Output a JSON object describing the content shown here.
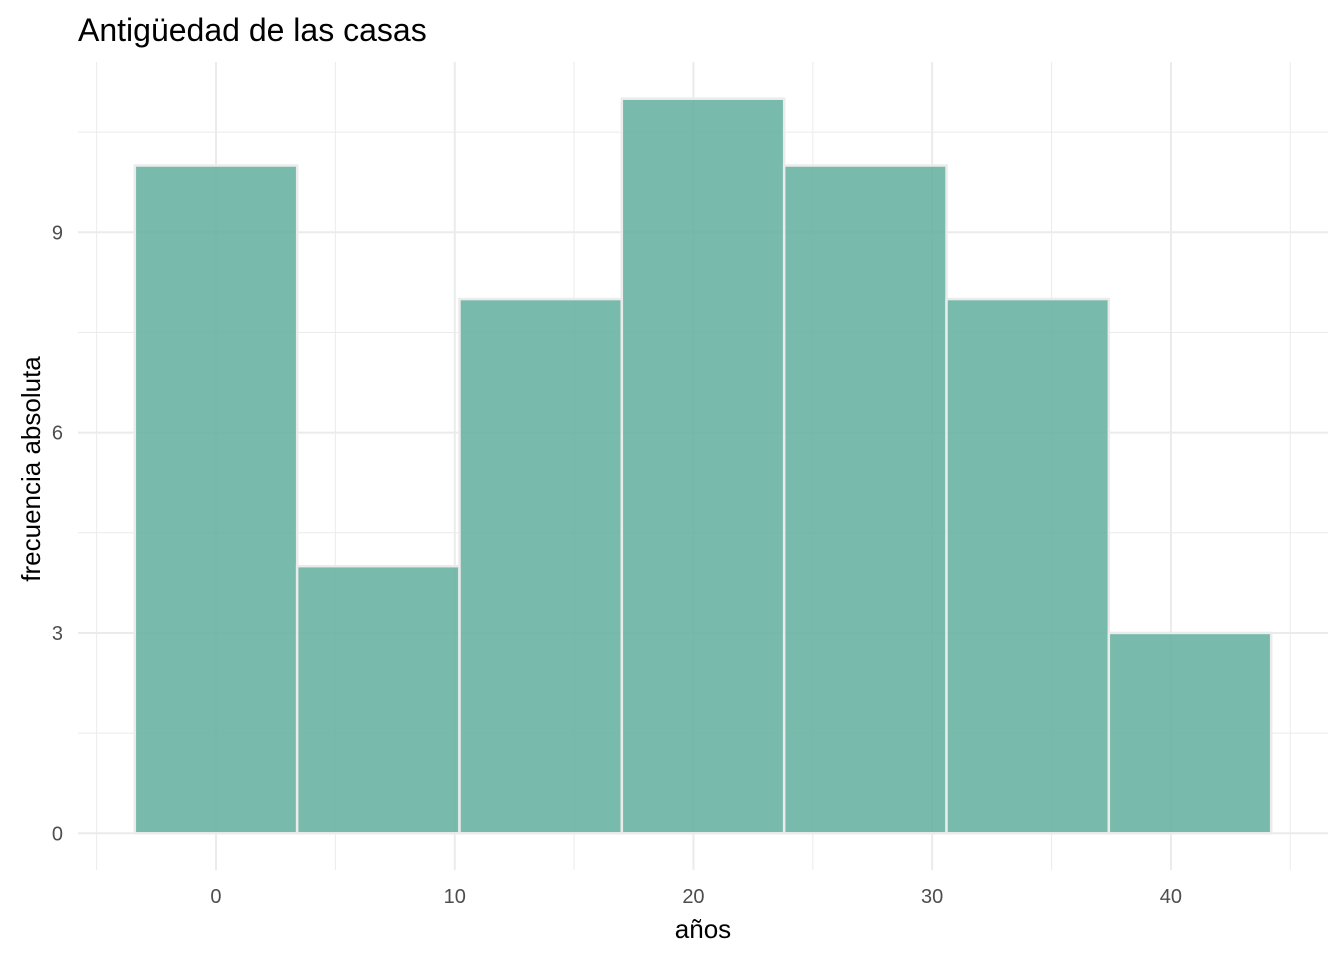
{
  "chart_data": {
    "type": "bar",
    "title": "Antigüedad de las casas",
    "xlabel": "años",
    "ylabel": "frecuencia absoluta",
    "bins": [
      {
        "x0": -3.4,
        "x1": 3.4,
        "count": 10
      },
      {
        "x0": 3.4,
        "x1": 10.2,
        "count": 4
      },
      {
        "x0": 10.2,
        "x1": 17.0,
        "count": 8
      },
      {
        "x0": 17.0,
        "x1": 23.8,
        "count": 11
      },
      {
        "x0": 23.8,
        "x1": 30.6,
        "count": 10
      },
      {
        "x0": 30.6,
        "x1": 37.4,
        "count": 8
      },
      {
        "x0": 37.4,
        "x1": 44.2,
        "count": 3
      }
    ],
    "x_ticks": [
      0,
      10,
      20,
      30,
      40
    ],
    "y_ticks": [
      0,
      3,
      6,
      9
    ],
    "xlim": [
      -5.78,
      46.58
    ],
    "ylim": [
      -0.55,
      11.55
    ],
    "grid": true,
    "bar_color": "#69b3a2"
  }
}
